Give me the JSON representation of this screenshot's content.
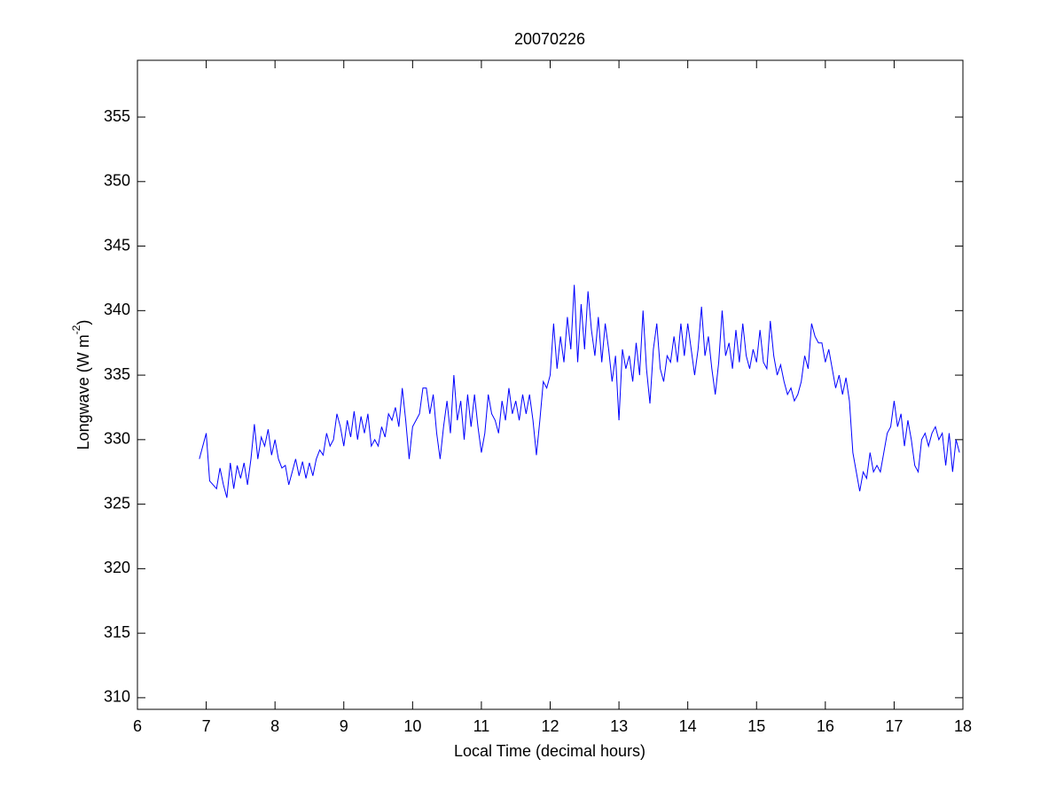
{
  "chart_data": {
    "type": "line",
    "title": "20070226",
    "xlabel": "Local Time (decimal hours)",
    "ylabel": [
      "Longwave (W m",
      "-2",
      ")"
    ],
    "xlim": [
      6,
      18
    ],
    "xticks": [
      6,
      7,
      8,
      9,
      10,
      11,
      12,
      13,
      14,
      15,
      16,
      17,
      18
    ],
    "ylim": [
      309.1,
      359.4
    ],
    "yticks": [
      310,
      315,
      320,
      325,
      330,
      335,
      340,
      345,
      350,
      355
    ],
    "grid": false,
    "series": [
      {
        "color": "#0000ff",
        "x": [
          6.9,
          6.95,
          7.0,
          7.05,
          7.1,
          7.15,
          7.2,
          7.25,
          7.3,
          7.35,
          7.4,
          7.45,
          7.5,
          7.55,
          7.6,
          7.65,
          7.7,
          7.75,
          7.8,
          7.85,
          7.9,
          7.95,
          8.0,
          8.05,
          8.1,
          8.15,
          8.2,
          8.25,
          8.3,
          8.35,
          8.4,
          8.45,
          8.5,
          8.55,
          8.6,
          8.65,
          8.7,
          8.75,
          8.8,
          8.85,
          8.9,
          8.95,
          9.0,
          9.05,
          9.1,
          9.15,
          9.2,
          9.25,
          9.3,
          9.35,
          9.4,
          9.45,
          9.5,
          9.55,
          9.6,
          9.65,
          9.7,
          9.75,
          9.8,
          9.85,
          9.9,
          9.95,
          10.0,
          10.05,
          10.1,
          10.15,
          10.2,
          10.25,
          10.3,
          10.35,
          10.4,
          10.45,
          10.5,
          10.55,
          10.6,
          10.65,
          10.7,
          10.75,
          10.8,
          10.85,
          10.9,
          10.95,
          11.0,
          11.05,
          11.1,
          11.15,
          11.2,
          11.25,
          11.3,
          11.35,
          11.4,
          11.45,
          11.5,
          11.55,
          11.6,
          11.65,
          11.7,
          11.75,
          11.8,
          11.85,
          11.9,
          11.95,
          12.0,
          12.05,
          12.1,
          12.15,
          12.2,
          12.25,
          12.3,
          12.35,
          12.4,
          12.45,
          12.5,
          12.55,
          12.6,
          12.65,
          12.7,
          12.75,
          12.8,
          12.85,
          12.9,
          12.95,
          13.0,
          13.05,
          13.1,
          13.15,
          13.2,
          13.25,
          13.3,
          13.35,
          13.4,
          13.45,
          13.5,
          13.55,
          13.6,
          13.65,
          13.7,
          13.75,
          13.8,
          13.85,
          13.9,
          13.95,
          14.0,
          14.05,
          14.1,
          14.15,
          14.2,
          14.25,
          14.3,
          14.35,
          14.4,
          14.45,
          14.5,
          14.55,
          14.6,
          14.65,
          14.7,
          14.75,
          14.8,
          14.85,
          14.9,
          14.95,
          15.0,
          15.05,
          15.1,
          15.15,
          15.2,
          15.25,
          15.3,
          15.35,
          15.4,
          15.45,
          15.5,
          15.55,
          15.6,
          15.65,
          15.7,
          15.75,
          15.8,
          15.85,
          15.9,
          15.95,
          16.0,
          16.05,
          16.1,
          16.15,
          16.2,
          16.25,
          16.3,
          16.35,
          16.4,
          16.45,
          16.5,
          16.55,
          16.6,
          16.65,
          16.7,
          16.75,
          16.8,
          16.85,
          16.9,
          16.95,
          17.0,
          17.05,
          17.1,
          17.15,
          17.2,
          17.25,
          17.3,
          17.35,
          17.4,
          17.45,
          17.5,
          17.55,
          17.6,
          17.65,
          17.7,
          17.75,
          17.8,
          17.85,
          17.9,
          17.95
        ],
        "values": [
          328.5,
          329.5,
          330.5,
          326.8,
          326.5,
          326.2,
          327.8,
          326.5,
          325.5,
          328.2,
          326.2,
          328.0,
          327.0,
          328.2,
          326.5,
          328.5,
          331.2,
          328.5,
          330.2,
          329.5,
          330.8,
          328.8,
          330.0,
          328.5,
          327.8,
          328.0,
          326.5,
          327.5,
          328.5,
          327.2,
          328.3,
          327.0,
          328.2,
          327.2,
          328.5,
          329.2,
          328.8,
          330.5,
          329.5,
          330.0,
          332.0,
          331.0,
          329.5,
          331.5,
          330.2,
          332.2,
          330.0,
          331.8,
          330.5,
          332.0,
          329.5,
          330.0,
          329.5,
          331.0,
          330.2,
          332.0,
          331.5,
          332.5,
          331.0,
          334.0,
          331.5,
          328.5,
          331.0,
          331.5,
          332.0,
          334.0,
          334.0,
          332.0,
          333.5,
          330.5,
          328.5,
          331.0,
          333.0,
          330.5,
          335.0,
          331.5,
          333.0,
          330.0,
          333.5,
          331.0,
          333.5,
          331.0,
          329.0,
          330.5,
          333.5,
          332.0,
          331.5,
          330.5,
          333.0,
          331.5,
          334.0,
          332.0,
          333.0,
          331.5,
          333.5,
          332.0,
          333.5,
          331.5,
          328.8,
          331.5,
          334.5,
          334.0,
          335.0,
          339.0,
          335.5,
          338.0,
          336.0,
          339.5,
          337.0,
          342.0,
          336.0,
          340.5,
          337.0,
          341.5,
          338.5,
          336.5,
          339.5,
          336.0,
          339.0,
          337.0,
          334.5,
          336.5,
          331.5,
          337.0,
          335.5,
          336.5,
          334.5,
          337.5,
          335.0,
          340.0,
          335.5,
          332.8,
          337.0,
          339.0,
          335.5,
          334.5,
          336.5,
          336.0,
          338.0,
          336.0,
          339.0,
          336.5,
          339.0,
          337.0,
          335.0,
          337.0,
          340.3,
          336.5,
          338.0,
          335.5,
          333.5,
          336.0,
          340.0,
          336.5,
          337.5,
          335.5,
          338.5,
          336.0,
          339.0,
          336.5,
          335.5,
          337.0,
          336.0,
          338.5,
          336.0,
          335.5,
          339.2,
          336.5,
          335.0,
          335.8,
          334.5,
          333.5,
          334.0,
          333.0,
          333.5,
          334.5,
          336.5,
          335.5,
          339.0,
          338.0,
          337.5,
          337.5,
          336.0,
          337.0,
          335.5,
          334.0,
          335.0,
          333.5,
          334.8,
          333.0,
          329.0,
          327.5,
          326.0,
          327.5,
          327.0,
          329.0,
          327.5,
          328.0,
          327.5,
          329.0,
          330.5,
          331.0,
          333.0,
          331.0,
          332.0,
          329.5,
          331.5,
          330.0,
          328.0,
          327.5,
          330.0,
          330.5,
          329.5,
          330.5,
          331.0,
          330.0,
          330.5,
          328.0,
          330.5,
          327.5,
          330.0,
          329.0
        ]
      }
    ]
  }
}
